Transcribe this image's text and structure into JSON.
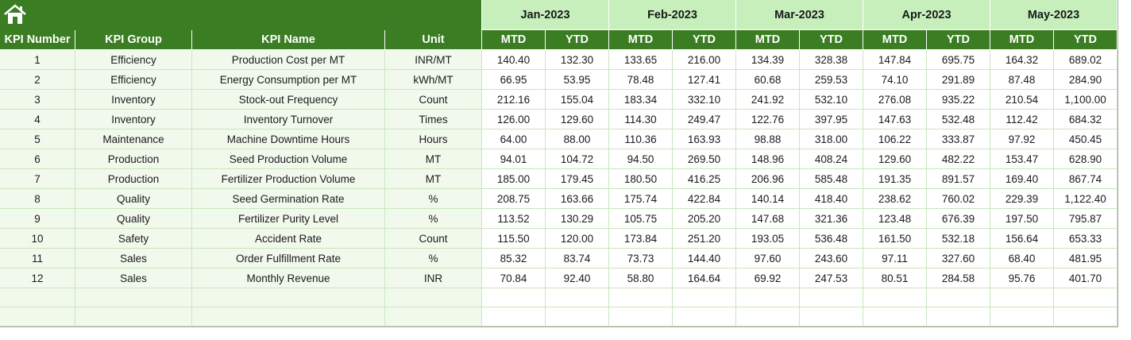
{
  "header": {
    "months": [
      "Jan-2023",
      "Feb-2023",
      "Mar-2023",
      "Apr-2023",
      "May-2023"
    ]
  },
  "table": {
    "columns": [
      "KPI Number",
      "KPI Group",
      "KPI Name",
      "Unit",
      "MTD",
      "YTD",
      "MTD",
      "YTD",
      "MTD",
      "YTD",
      "MTD",
      "YTD",
      "MTD",
      "YTD"
    ],
    "rows": [
      [
        "1",
        "Efficiency",
        "Production Cost per MT",
        "INR/MT",
        "140.40",
        "132.30",
        "133.65",
        "216.00",
        "134.39",
        "328.38",
        "147.84",
        "695.75",
        "164.32",
        "689.02"
      ],
      [
        "2",
        "Efficiency",
        "Energy Consumption per MT",
        "kWh/MT",
        "66.95",
        "53.95",
        "78.48",
        "127.41",
        "60.68",
        "259.53",
        "74.10",
        "291.89",
        "87.48",
        "284.90"
      ],
      [
        "3",
        "Inventory",
        "Stock-out Frequency",
        "Count",
        "212.16",
        "155.04",
        "183.34",
        "332.10",
        "241.92",
        "532.10",
        "276.08",
        "935.22",
        "210.54",
        "1,100.00"
      ],
      [
        "4",
        "Inventory",
        "Inventory Turnover",
        "Times",
        "126.00",
        "129.60",
        "114.30",
        "249.47",
        "122.76",
        "397.95",
        "147.63",
        "532.48",
        "112.42",
        "684.32"
      ],
      [
        "5",
        "Maintenance",
        "Machine Downtime Hours",
        "Hours",
        "64.00",
        "88.00",
        "110.36",
        "163.93",
        "98.88",
        "318.00",
        "106.22",
        "333.87",
        "97.92",
        "450.45"
      ],
      [
        "6",
        "Production",
        "Seed Production Volume",
        "MT",
        "94.01",
        "104.72",
        "94.50",
        "269.50",
        "148.96",
        "408.24",
        "129.60",
        "482.22",
        "153.47",
        "628.90"
      ],
      [
        "7",
        "Production",
        "Fertilizer Production Volume",
        "MT",
        "185.00",
        "179.45",
        "180.50",
        "416.25",
        "206.96",
        "585.48",
        "191.35",
        "891.57",
        "169.40",
        "867.74"
      ],
      [
        "8",
        "Quality",
        "Seed Germination Rate",
        "%",
        "208.75",
        "163.66",
        "175.74",
        "422.84",
        "140.14",
        "418.40",
        "238.62",
        "760.02",
        "229.39",
        "1,122.40"
      ],
      [
        "9",
        "Quality",
        "Fertilizer Purity Level",
        "%",
        "113.52",
        "130.29",
        "105.75",
        "205.20",
        "147.68",
        "321.36",
        "123.48",
        "676.39",
        "197.50",
        "795.87"
      ],
      [
        "10",
        "Safety",
        "Accident Rate",
        "Count",
        "115.50",
        "120.00",
        "173.84",
        "251.20",
        "193.05",
        "536.48",
        "161.50",
        "532.18",
        "156.64",
        "653.33"
      ],
      [
        "11",
        "Sales",
        "Order Fulfillment Rate",
        "%",
        "85.32",
        "83.74",
        "73.73",
        "144.40",
        "97.60",
        "243.60",
        "97.11",
        "327.60",
        "68.40",
        "481.95"
      ],
      [
        "12",
        "Sales",
        "Monthly Revenue",
        "INR",
        "70.84",
        "92.40",
        "58.80",
        "164.64",
        "69.92",
        "247.53",
        "80.51",
        "284.58",
        "95.76",
        "401.70"
      ]
    ]
  }
}
